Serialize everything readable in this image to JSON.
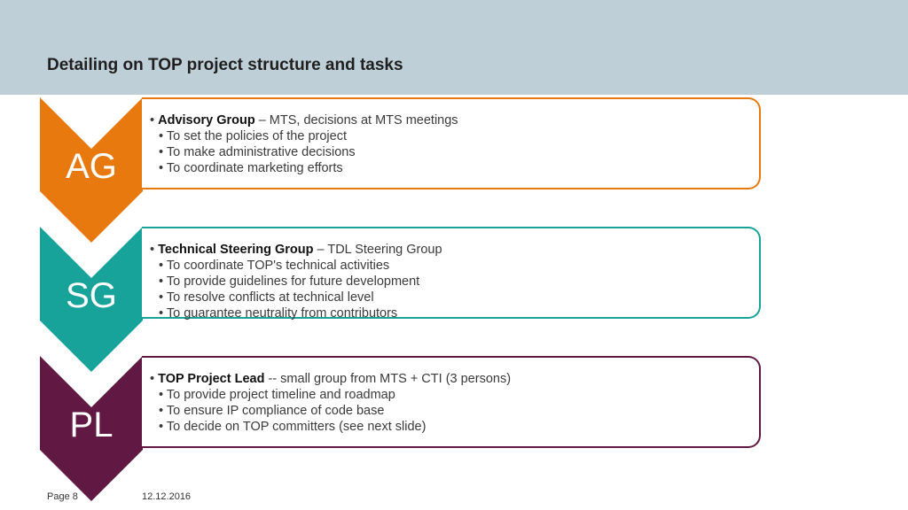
{
  "title": "Detailing on TOP project structure and tasks",
  "bullet_glyph": "•",
  "colors": {
    "header_bg": "#bfcfd8",
    "ag": "#e8790f",
    "sg": "#17a29a",
    "pl": "#611943"
  },
  "groups": [
    {
      "abbr": "AG",
      "heading": "Advisory Group",
      "detail": "– MTS, decisions at MTS meetings",
      "items": [
        "To set the policies of the project",
        "To make administrative decisions",
        "To coordinate marketing efforts"
      ]
    },
    {
      "abbr": "SG",
      "heading": "Technical Steering Group",
      "detail": "– TDL Steering Group",
      "items": [
        "To coordinate TOP's technical activities",
        "To provide guidelines for future development",
        "To resolve conflicts at technical level",
        "To guarantee neutrality from contributors"
      ]
    },
    {
      "abbr": "PL",
      "heading": "TOP Project Lead",
      "detail": "-- small group from MTS + CTI (3 persons)",
      "items": [
        "To provide project timeline and roadmap",
        "To ensure IP compliance of code base",
        "To decide on TOP committers (see next slide)"
      ]
    }
  ],
  "footer": {
    "page": "Page 8",
    "date": "12.12.2016"
  }
}
